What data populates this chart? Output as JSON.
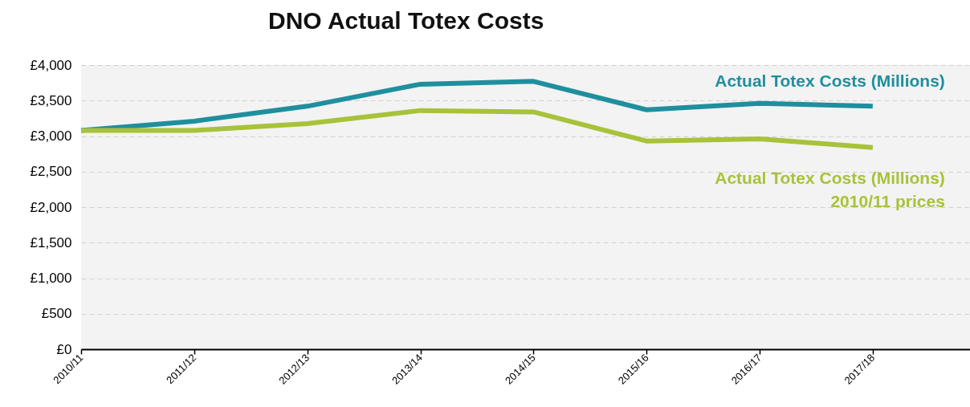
{
  "chart_data": {
    "type": "line",
    "title": "DNO Actual Totex Costs",
    "categories": [
      "2010/11",
      "2011/12",
      "2012/13",
      "2013/14",
      "2014/15",
      "2015/16",
      "2016/17",
      "2017/18"
    ],
    "series": [
      {
        "name": "Actual Totex Costs (Millions)",
        "color": "#1f8f9e",
        "values": [
          3080,
          3210,
          3420,
          3730,
          3770,
          3370,
          3460,
          3420
        ]
      },
      {
        "name": "Actual Totex Costs (Millions)\n2010/11 prices",
        "color": "#a8c23a",
        "values": [
          3080,
          3080,
          3175,
          3360,
          3340,
          2930,
          2960,
          2840
        ]
      }
    ],
    "ylim": [
      0,
      4000
    ],
    "yticks": [
      {
        "value": 0,
        "label": "£0"
      },
      {
        "value": 500,
        "label": "£500"
      },
      {
        "value": 1000,
        "label": "£1,000"
      },
      {
        "value": 1500,
        "label": "£1,500"
      },
      {
        "value": 2000,
        "label": "£2,000"
      },
      {
        "value": 2500,
        "label": "£2,500"
      },
      {
        "value": 3000,
        "label": "£3,000"
      },
      {
        "value": 3500,
        "label": "£3,500"
      },
      {
        "value": 4000,
        "label": "£4,000"
      }
    ],
    "grid": "y",
    "legend": false,
    "line_style": "solid",
    "marker": "none"
  }
}
